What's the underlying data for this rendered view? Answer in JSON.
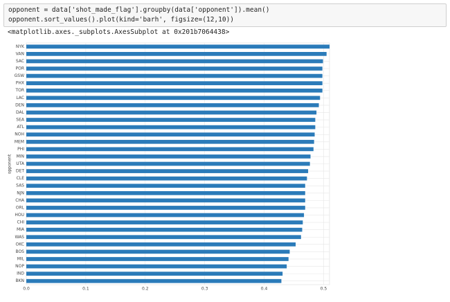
{
  "code": [
    "opponent = data['shot_made_flag'].groupby(data['opponent']).mean()",
    "opponent.sort_values().plot(kind='barh', figsize=(12,10))"
  ],
  "output": "<matplotlib.axes._subplots.AxesSubplot at 0x201b7064438>",
  "chart_data": {
    "type": "barh",
    "ylabel": "opponent",
    "categories": [
      "BKN",
      "IND",
      "NOP",
      "MIL",
      "BOS",
      "OKC",
      "WAS",
      "MIA",
      "CHI",
      "HOU",
      "ORL",
      "CHA",
      "NJN",
      "SAS",
      "CLE",
      "DET",
      "UTA",
      "MIN",
      "PHI",
      "MEM",
      "NOH",
      "ATL",
      "SEA",
      "DAL",
      "DEN",
      "LAC",
      "TOR",
      "PHX",
      "GSW",
      "POR",
      "SAC",
      "VAN",
      "NYK"
    ],
    "values": [
      0.429,
      0.431,
      0.438,
      0.441,
      0.443,
      0.453,
      0.462,
      0.464,
      0.465,
      0.467,
      0.469,
      0.469,
      0.469,
      0.469,
      0.472,
      0.474,
      0.477,
      0.478,
      0.483,
      0.484,
      0.485,
      0.486,
      0.486,
      0.488,
      0.492,
      0.494,
      0.498,
      0.498,
      0.498,
      0.498,
      0.499,
      0.505,
      0.51
    ],
    "color": "#2b7bb9",
    "xlim": [
      0,
      0.51
    ],
    "xticks": [
      {
        "value": 0,
        "label": "0.0"
      },
      0.1,
      0.2,
      0.3,
      0.4,
      0.5
    ],
    "grid": true
  }
}
